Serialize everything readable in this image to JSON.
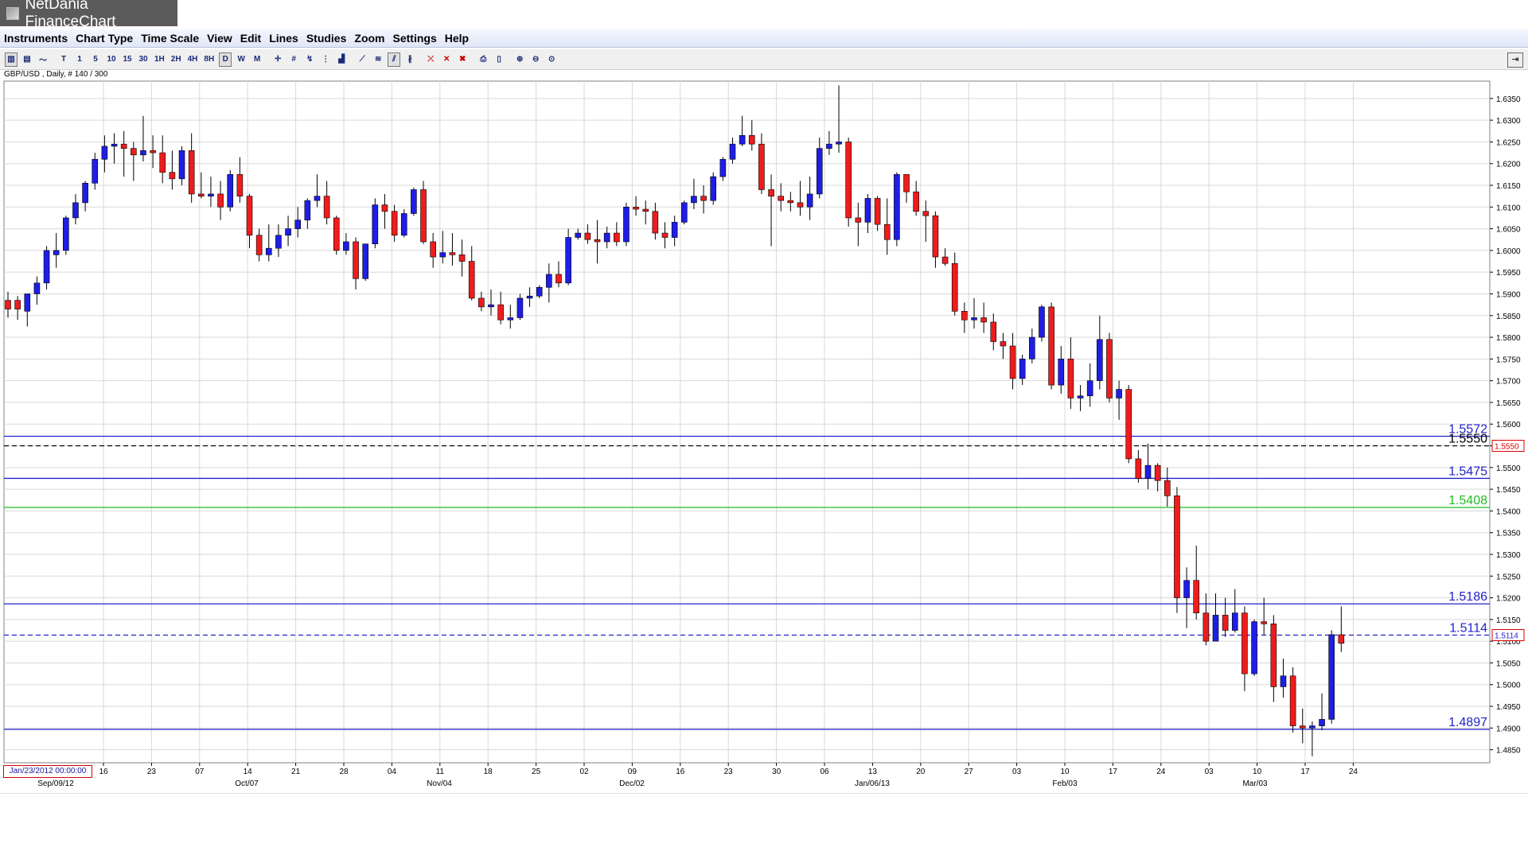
{
  "window": {
    "title": "NetDania FinanceChart"
  },
  "menu": [
    "Instruments",
    "Chart Type",
    "Time Scale",
    "View",
    "Edit",
    "Lines",
    "Studies",
    "Zoom",
    "Settings",
    "Help"
  ],
  "toolbar": {
    "period_buttons": [
      "T",
      "1",
      "5",
      "10",
      "15",
      "30",
      "1H",
      "2H",
      "4H",
      "8H",
      "D",
      "W",
      "M"
    ],
    "active_period": "D",
    "icons": [
      "bar-chart-icon",
      "candle-chart-icon",
      "line-chart-icon",
      "crosshair-icon",
      "grid-icon",
      "cursor-icon",
      "data-window-icon",
      "volume-icon",
      "trendline-icon",
      "fibonacci-icon",
      "channel-icon",
      "parallel-icon",
      "delete-line-icon",
      "delete-all-icon",
      "print-icon",
      "print-preview-icon",
      "zoom-in-icon",
      "zoom-out-icon",
      "zoom-reset-icon",
      "pin-icon"
    ]
  },
  "instrument_label": "GBP/USD , Daily, # 140 / 300",
  "start_date_box": "Jan/23/2012 00:00:00",
  "colors": {
    "up": "#1e1ee6",
    "down": "#ee1c1c",
    "hline": "#2222cc",
    "support_green": "#22bb22",
    "grid": "#d8d8d8"
  },
  "chart_data": {
    "type": "candlestick",
    "ylim": [
      1.482,
      1.639
    ],
    "y_ticks": [
      1.485,
      1.49,
      1.495,
      1.5,
      1.505,
      1.51,
      1.515,
      1.52,
      1.525,
      1.53,
      1.535,
      1.54,
      1.545,
      1.55,
      1.555,
      1.56,
      1.565,
      1.57,
      1.575,
      1.58,
      1.585,
      1.59,
      1.595,
      1.6,
      1.605,
      1.61,
      1.615,
      1.62,
      1.625,
      1.63,
      1.635
    ],
    "x_ticks": [
      "16",
      "23",
      "07",
      "14",
      "21",
      "28",
      "04",
      "11",
      "18",
      "25",
      "02",
      "09",
      "16",
      "23",
      "30",
      "06",
      "13",
      "20",
      "27",
      "03",
      "10",
      "17",
      "24",
      "03",
      "10",
      "17",
      "24"
    ],
    "x_major": [
      "Sep/09/12",
      "Oct/07",
      "Nov/04",
      "Dec/02",
      "Jan/06/13",
      "Feb/03",
      "Mar/03"
    ],
    "horizontal_lines": [
      {
        "value": 1.5572,
        "label": "1.5572",
        "style": "solid",
        "color": "#2222cc"
      },
      {
        "value": 1.555,
        "label": "1.5550",
        "style": "dashed",
        "color": "#000000"
      },
      {
        "value": 1.5475,
        "label": "1.5475",
        "style": "solid",
        "color": "#2222cc"
      },
      {
        "value": 1.5408,
        "label": "1.5408",
        "style": "solid",
        "color": "#22bb22"
      },
      {
        "value": 1.5186,
        "label": "1.5186",
        "style": "solid",
        "color": "#2222cc"
      },
      {
        "value": 1.5114,
        "label": "1.5114",
        "style": "dashed",
        "color": "#2222cc"
      },
      {
        "value": 1.4897,
        "label": "1.4897",
        "style": "solid",
        "color": "#2222cc"
      }
    ],
    "price_markers": [
      {
        "value": 1.555,
        "label": "1.5550",
        "border": "#dd0000",
        "color": "#dd0000"
      },
      {
        "value": 1.5114,
        "label": "1.5114",
        "border": "#dd0000",
        "color": "#2222cc"
      }
    ],
    "ohlc": [
      [
        1.5885,
        1.5905,
        1.5845,
        1.5865
      ],
      [
        1.5885,
        1.5895,
        1.584,
        1.5865
      ],
      [
        1.586,
        1.59,
        1.5825,
        1.59
      ],
      [
        1.59,
        1.594,
        1.5875,
        1.5925
      ],
      [
        1.5925,
        1.601,
        1.591,
        1.6
      ],
      [
        1.599,
        1.604,
        1.596,
        1.6
      ],
      [
        1.6,
        1.608,
        1.599,
        1.6075
      ],
      [
        1.6075,
        1.613,
        1.606,
        1.611
      ],
      [
        1.611,
        1.616,
        1.609,
        1.6155
      ],
      [
        1.6155,
        1.6225,
        1.614,
        1.621
      ],
      [
        1.621,
        1.6265,
        1.618,
        1.624
      ],
      [
        1.624,
        1.627,
        1.62,
        1.6245
      ],
      [
        1.6245,
        1.6275,
        1.617,
        1.6235
      ],
      [
        1.6235,
        1.625,
        1.616,
        1.622
      ],
      [
        1.622,
        1.631,
        1.6205,
        1.623
      ],
      [
        1.623,
        1.6265,
        1.619,
        1.6225
      ],
      [
        1.6225,
        1.6265,
        1.6155,
        1.618
      ],
      [
        1.618,
        1.623,
        1.614,
        1.6165
      ],
      [
        1.6165,
        1.624,
        1.615,
        1.623
      ],
      [
        1.623,
        1.627,
        1.611,
        1.613
      ],
      [
        1.613,
        1.618,
        1.612,
        1.6125
      ],
      [
        1.6125,
        1.617,
        1.61,
        1.613
      ],
      [
        1.613,
        1.616,
        1.607,
        1.61
      ],
      [
        1.61,
        1.6185,
        1.609,
        1.6175
      ],
      [
        1.6175,
        1.6215,
        1.611,
        1.6125
      ],
      [
        1.6125,
        1.613,
        1.6005,
        1.6035
      ],
      [
        1.6035,
        1.605,
        1.5975,
        1.599
      ],
      [
        1.599,
        1.606,
        1.5975,
        1.6005
      ],
      [
        1.6005,
        1.606,
        1.5985,
        1.6035
      ],
      [
        1.6035,
        1.608,
        1.601,
        1.605
      ],
      [
        1.605,
        1.61,
        1.603,
        1.607
      ],
      [
        1.607,
        1.612,
        1.605,
        1.6115
      ],
      [
        1.6115,
        1.6175,
        1.61,
        1.6125
      ],
      [
        1.6125,
        1.616,
        1.606,
        1.6075
      ],
      [
        1.6075,
        1.608,
        1.599,
        1.6
      ],
      [
        1.6,
        1.604,
        1.599,
        1.602
      ],
      [
        1.602,
        1.603,
        1.591,
        1.5935
      ],
      [
        1.5935,
        1.601,
        1.593,
        1.6015
      ],
      [
        1.6015,
        1.612,
        1.6005,
        1.6105
      ],
      [
        1.6105,
        1.613,
        1.605,
        1.609
      ],
      [
        1.609,
        1.6105,
        1.602,
        1.6035
      ],
      [
        1.6035,
        1.6095,
        1.603,
        1.6085
      ],
      [
        1.6085,
        1.6145,
        1.608,
        1.614
      ],
      [
        1.614,
        1.616,
        1.6015,
        1.602
      ],
      [
        1.602,
        1.604,
        1.596,
        1.5985
      ],
      [
        1.5985,
        1.6045,
        1.597,
        1.5995
      ],
      [
        1.5995,
        1.604,
        1.5965,
        1.599
      ],
      [
        1.599,
        1.6025,
        1.594,
        1.5975
      ],
      [
        1.5975,
        1.601,
        1.5885,
        1.589
      ],
      [
        1.589,
        1.5905,
        1.586,
        1.587
      ],
      [
        1.587,
        1.591,
        1.585,
        1.5875
      ],
      [
        1.5875,
        1.5905,
        1.583,
        1.584
      ],
      [
        1.584,
        1.5875,
        1.582,
        1.5845
      ],
      [
        1.5845,
        1.59,
        1.584,
        1.589
      ],
      [
        1.589,
        1.5915,
        1.587,
        1.5895
      ],
      [
        1.5895,
        1.592,
        1.589,
        1.5915
      ],
      [
        1.5915,
        1.597,
        1.588,
        1.5945
      ],
      [
        1.5945,
        1.5975,
        1.5915,
        1.5925
      ],
      [
        1.5925,
        1.605,
        1.592,
        1.603
      ],
      [
        1.603,
        1.605,
        1.6025,
        1.604
      ],
      [
        1.604,
        1.606,
        1.6015,
        1.6025
      ],
      [
        1.6025,
        1.607,
        1.597,
        1.602
      ],
      [
        1.602,
        1.6055,
        1.6005,
        1.604
      ],
      [
        1.604,
        1.6065,
        1.601,
        1.602
      ],
      [
        1.602,
        1.611,
        1.601,
        1.61
      ],
      [
        1.61,
        1.6125,
        1.608,
        1.6095
      ],
      [
        1.6095,
        1.6115,
        1.606,
        1.609
      ],
      [
        1.609,
        1.611,
        1.6025,
        1.604
      ],
      [
        1.604,
        1.6065,
        1.6005,
        1.603
      ],
      [
        1.603,
        1.608,
        1.601,
        1.6065
      ],
      [
        1.6065,
        1.6115,
        1.606,
        1.611
      ],
      [
        1.611,
        1.6165,
        1.6095,
        1.6125
      ],
      [
        1.6125,
        1.615,
        1.6085,
        1.6115
      ],
      [
        1.6115,
        1.618,
        1.6105,
        1.617
      ],
      [
        1.617,
        1.6215,
        1.616,
        1.621
      ],
      [
        1.621,
        1.626,
        1.62,
        1.6245
      ],
      [
        1.6245,
        1.631,
        1.624,
        1.6265
      ],
      [
        1.6265,
        1.63,
        1.623,
        1.6245
      ],
      [
        1.6245,
        1.627,
        1.613,
        1.614
      ],
      [
        1.614,
        1.6175,
        1.601,
        1.6125
      ],
      [
        1.6125,
        1.6155,
        1.609,
        1.6115
      ],
      [
        1.6115,
        1.6135,
        1.609,
        1.611
      ],
      [
        1.611,
        1.616,
        1.608,
        1.61
      ],
      [
        1.61,
        1.617,
        1.607,
        1.613
      ],
      [
        1.613,
        1.626,
        1.612,
        1.6235
      ],
      [
        1.6235,
        1.6275,
        1.622,
        1.6245
      ],
      [
        1.6245,
        1.638,
        1.6225,
        1.625
      ],
      [
        1.625,
        1.626,
        1.6055,
        1.6075
      ],
      [
        1.6075,
        1.611,
        1.601,
        1.6065
      ],
      [
        1.6065,
        1.613,
        1.604,
        1.612
      ],
      [
        1.612,
        1.6125,
        1.6045,
        1.606
      ],
      [
        1.606,
        1.612,
        1.599,
        1.6025
      ],
      [
        1.6025,
        1.618,
        1.601,
        1.6175
      ],
      [
        1.6175,
        1.617,
        1.611,
        1.6135
      ],
      [
        1.6135,
        1.616,
        1.608,
        1.609
      ],
      [
        1.609,
        1.6115,
        1.602,
        1.608
      ],
      [
        1.608,
        1.609,
        1.596,
        1.5985
      ],
      [
        1.5985,
        1.6005,
        1.5965,
        1.597
      ],
      [
        1.597,
        1.5995,
        1.585,
        1.586
      ],
      [
        1.586,
        1.588,
        1.581,
        1.584
      ],
      [
        1.584,
        1.589,
        1.582,
        1.5845
      ],
      [
        1.5845,
        1.588,
        1.581,
        1.5835
      ],
      [
        1.5835,
        1.5855,
        1.577,
        1.579
      ],
      [
        1.579,
        1.581,
        1.575,
        1.578
      ],
      [
        1.578,
        1.581,
        1.568,
        1.5705
      ],
      [
        1.5705,
        1.576,
        1.569,
        1.575
      ],
      [
        1.575,
        1.582,
        1.574,
        1.58
      ],
      [
        1.58,
        1.5875,
        1.579,
        1.587
      ],
      [
        1.587,
        1.588,
        1.568,
        1.569
      ],
      [
        1.569,
        1.578,
        1.567,
        1.575
      ],
      [
        1.575,
        1.58,
        1.5635,
        1.566
      ],
      [
        1.566,
        1.569,
        1.563,
        1.5665
      ],
      [
        1.5665,
        1.574,
        1.564,
        1.57
      ],
      [
        1.57,
        1.585,
        1.568,
        1.5795
      ],
      [
        1.5795,
        1.581,
        1.565,
        1.566
      ],
      [
        1.566,
        1.57,
        1.561,
        1.568
      ],
      [
        1.568,
        1.569,
        1.551,
        1.552
      ],
      [
        1.552,
        1.554,
        1.5465,
        1.5475
      ],
      [
        1.5475,
        1.5555,
        1.545,
        1.5505
      ],
      [
        1.5505,
        1.551,
        1.5445,
        1.547
      ],
      [
        1.547,
        1.55,
        1.541,
        1.5435
      ],
      [
        1.5435,
        1.5455,
        1.5165,
        1.52
      ],
      [
        1.52,
        1.527,
        1.513,
        1.524
      ],
      [
        1.524,
        1.532,
        1.515,
        1.5165
      ],
      [
        1.5165,
        1.521,
        1.509,
        1.51
      ],
      [
        1.51,
        1.521,
        1.511,
        1.516
      ],
      [
        1.516,
        1.52,
        1.511,
        1.5125
      ],
      [
        1.5125,
        1.522,
        1.512,
        1.5165
      ],
      [
        1.5165,
        1.518,
        1.4985,
        1.5025
      ],
      [
        1.5025,
        1.515,
        1.502,
        1.5145
      ],
      [
        1.5145,
        1.52,
        1.5115,
        1.514
      ],
      [
        1.514,
        1.516,
        1.496,
        1.4995
      ],
      [
        1.4995,
        1.506,
        1.497,
        1.502
      ],
      [
        1.502,
        1.504,
        1.489,
        1.4905
      ],
      [
        1.4905,
        1.4945,
        1.4865,
        1.49
      ],
      [
        1.49,
        1.4915,
        1.4835,
        1.4905
      ],
      [
        1.4905,
        1.498,
        1.4895,
        1.492
      ],
      [
        1.492,
        1.5125,
        1.491,
        1.5115
      ],
      [
        1.5115,
        1.518,
        1.5075,
        1.5095
      ]
    ]
  }
}
